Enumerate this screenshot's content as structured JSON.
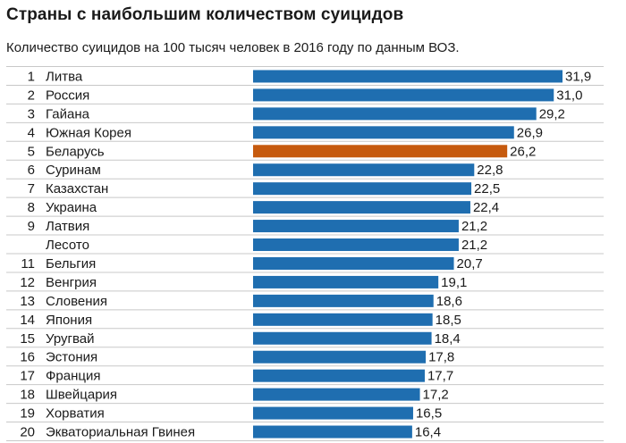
{
  "title": "Страны с наибольшим количеством суицидов",
  "subtitle": "Количество суицидов на 100 тысяч человек в 2016 году по данным ВОЗ.",
  "colors": {
    "bar": "#1f6eb0",
    "highlight": "#c65a0e",
    "grid": "#c8c8c8"
  },
  "chart_data": {
    "type": "bar",
    "orientation": "horizontal",
    "title": "Страны с наибольшим количеством суицидов",
    "subtitle": "Количество суицидов на 100 тысяч человек в 2016 году по данным ВОЗ.",
    "xlim": [
      0,
      31.9
    ],
    "grid": true,
    "highlight_category": "Беларусь",
    "ranks": [
      "1",
      "2",
      "3",
      "4",
      "5",
      "6",
      "7",
      "8",
      "9",
      "",
      "11",
      "12",
      "13",
      "14",
      "15",
      "16",
      "17",
      "18",
      "19",
      "20"
    ],
    "categories": [
      "Литва",
      "Россия",
      "Гайана",
      "Южная Корея",
      "Беларусь",
      "Суринам",
      "Казахстан",
      "Украина",
      "Латвия",
      "Лесото",
      "Бельгия",
      "Венгрия",
      "Словения",
      "Япония",
      "Уругвай",
      "Эстония",
      "Франция",
      "Швейцария",
      "Хорватия",
      "Экваториальная Гвинея"
    ],
    "values": [
      31.9,
      31.0,
      29.2,
      26.9,
      26.2,
      22.8,
      22.5,
      22.4,
      21.2,
      21.2,
      20.7,
      19.1,
      18.6,
      18.5,
      18.4,
      17.8,
      17.7,
      17.2,
      16.5,
      16.4
    ],
    "value_labels": [
      "31,9",
      "31,0",
      "29,2",
      "26,9",
      "26,2",
      "22,8",
      "22,5",
      "22,4",
      "21,2",
      "21,2",
      "20,7",
      "19,1",
      "18,6",
      "18,5",
      "18,4",
      "17,8",
      "17,7",
      "17,2",
      "16,5",
      "16,4"
    ]
  }
}
